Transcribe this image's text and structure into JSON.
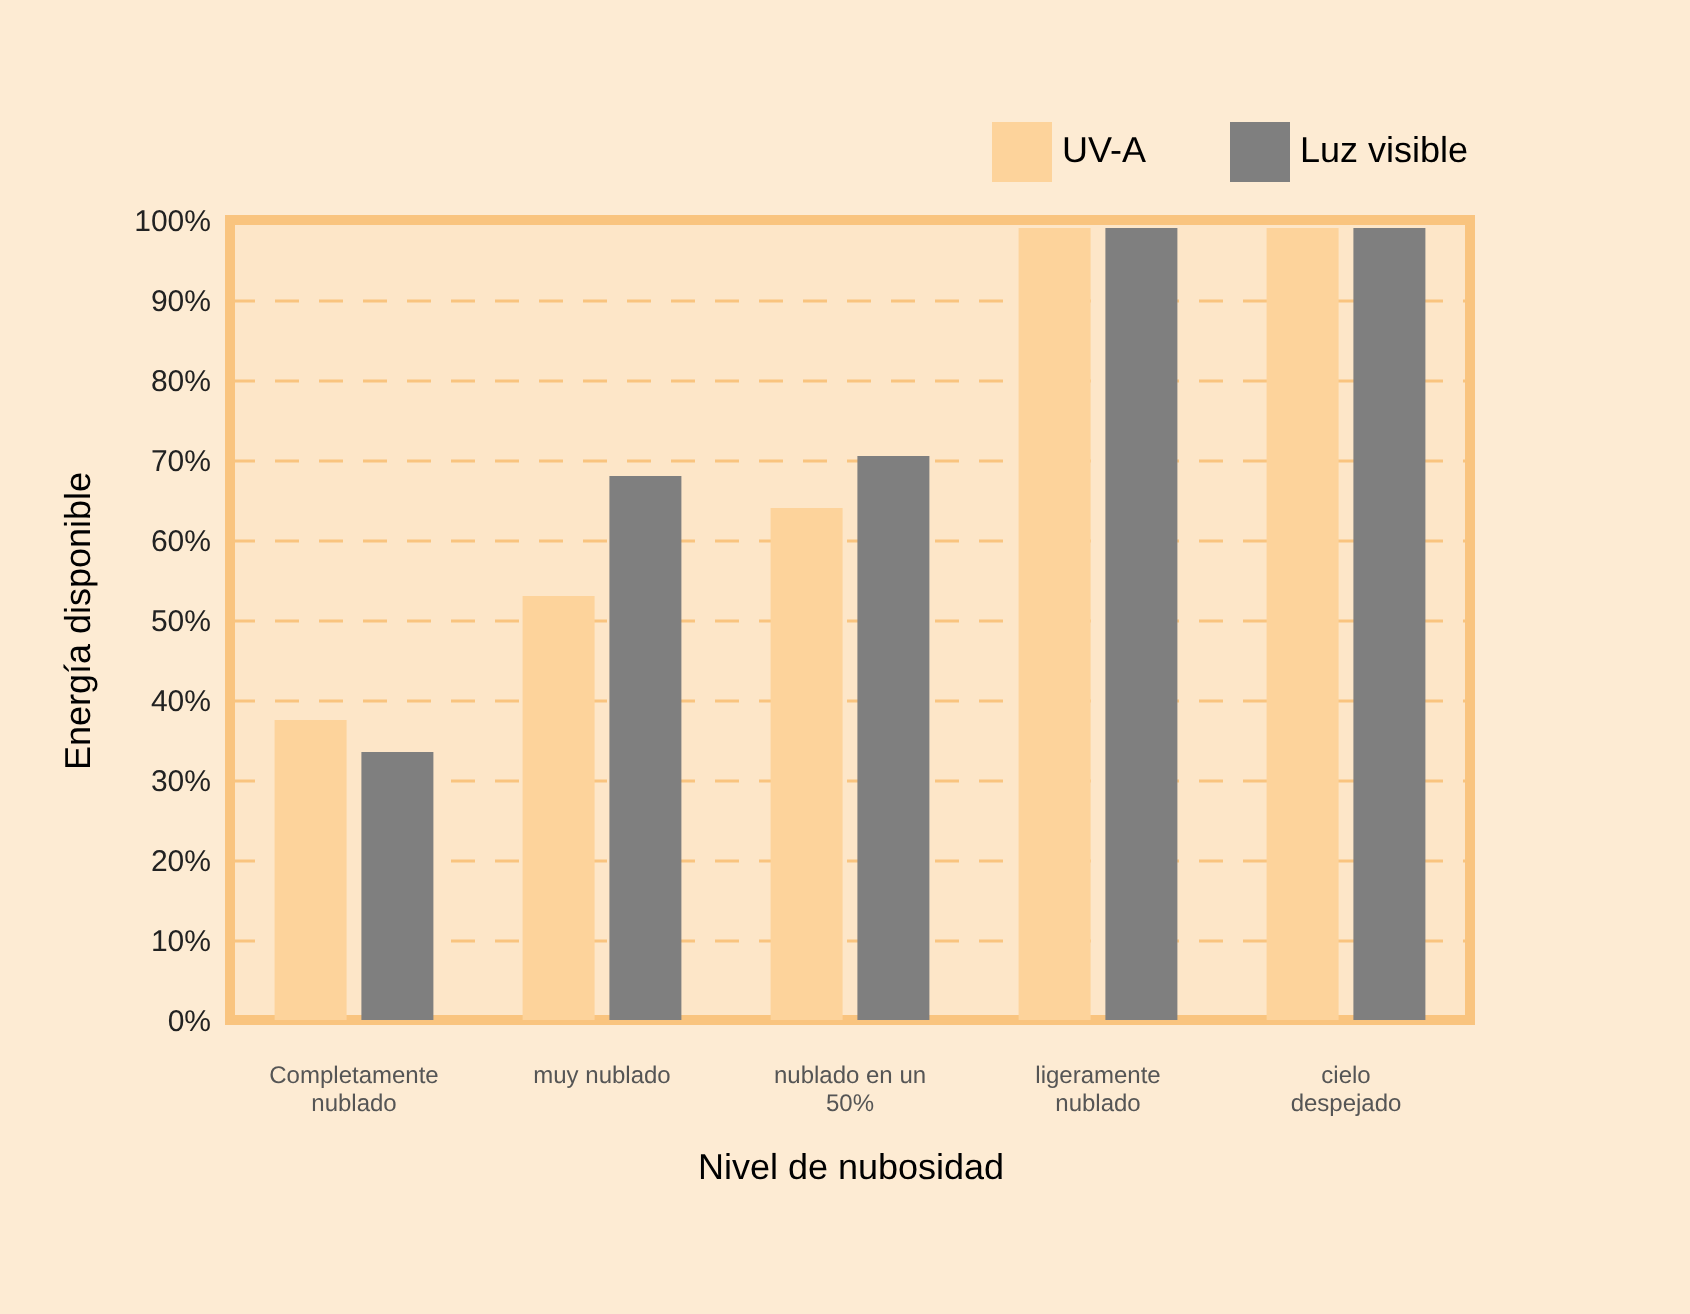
{
  "chart_data": {
    "type": "bar",
    "xlabel": "Nivel de nubosidad",
    "ylabel": "Energía disponible",
    "categories": [
      "Completamente nublado",
      "muy nublado",
      "nublado en un 50%",
      "ligeramente nublado",
      "cielo despejado"
    ],
    "series": [
      {
        "name": "UV-A",
        "color": "#fdd39b",
        "values": [
          37.5,
          53,
          64,
          99,
          99
        ]
      },
      {
        "name": "Luz visible",
        "color": "#7f7f7f",
        "values": [
          33.5,
          68,
          70.5,
          99,
          99
        ]
      }
    ],
    "ylim": [
      0,
      100
    ],
    "yticks": [
      {
        "value": 0,
        "label": "0%"
      },
      {
        "value": 10,
        "label": "10%"
      },
      {
        "value": 20,
        "label": "20%"
      },
      {
        "value": 30,
        "label": "30%"
      },
      {
        "value": 40,
        "label": "40%"
      },
      {
        "value": 50,
        "label": "50%"
      },
      {
        "value": 60,
        "label": "60%"
      },
      {
        "value": 70,
        "label": "70%"
      },
      {
        "value": 80,
        "label": "80%"
      },
      {
        "value": 90,
        "label": "90%"
      },
      {
        "value": 100,
        "label": "100%"
      }
    ],
    "grid": "y",
    "legend": "top right"
  }
}
